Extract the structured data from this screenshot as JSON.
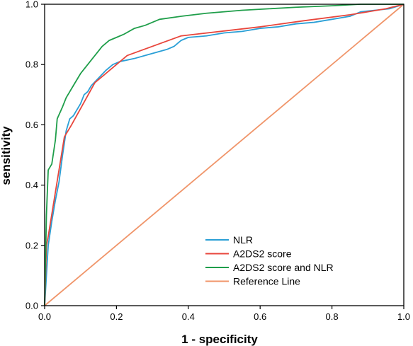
{
  "chart_data": {
    "type": "line",
    "title": "",
    "xlabel": "1 - specificity",
    "ylabel": "sensitivity",
    "xlim": [
      0,
      1
    ],
    "ylim": [
      0,
      1
    ],
    "x_ticks": [
      "0.0",
      "0.2",
      "0.4",
      "0.6",
      "0.8",
      "1.0"
    ],
    "y_ticks": [
      "0.0",
      "0.2",
      "0.4",
      "0.6",
      "0.8",
      "1.0"
    ],
    "grid": false,
    "legend_position": "bottom-right",
    "series": [
      {
        "name": "NLR",
        "color": "#2a9fd6",
        "points": [
          [
            0,
            0
          ],
          [
            0.005,
            0.1
          ],
          [
            0.01,
            0.2
          ],
          [
            0.02,
            0.28
          ],
          [
            0.03,
            0.35
          ],
          [
            0.04,
            0.41
          ],
          [
            0.05,
            0.5
          ],
          [
            0.06,
            0.58
          ],
          [
            0.07,
            0.62
          ],
          [
            0.08,
            0.63
          ],
          [
            0.09,
            0.65
          ],
          [
            0.1,
            0.67
          ],
          [
            0.11,
            0.7
          ],
          [
            0.12,
            0.71
          ],
          [
            0.13,
            0.73
          ],
          [
            0.15,
            0.755
          ],
          [
            0.17,
            0.78
          ],
          [
            0.19,
            0.8
          ],
          [
            0.21,
            0.81
          ],
          [
            0.23,
            0.815
          ],
          [
            0.25,
            0.82
          ],
          [
            0.28,
            0.83
          ],
          [
            0.31,
            0.84
          ],
          [
            0.34,
            0.85
          ],
          [
            0.36,
            0.86
          ],
          [
            0.38,
            0.88
          ],
          [
            0.4,
            0.89
          ],
          [
            0.45,
            0.895
          ],
          [
            0.5,
            0.905
          ],
          [
            0.55,
            0.91
          ],
          [
            0.6,
            0.92
          ],
          [
            0.65,
            0.925
          ],
          [
            0.7,
            0.935
          ],
          [
            0.75,
            0.94
          ],
          [
            0.8,
            0.95
          ],
          [
            0.85,
            0.96
          ],
          [
            0.88,
            0.975
          ],
          [
            0.92,
            0.98
          ],
          [
            0.96,
            0.985
          ],
          [
            1,
            1
          ]
        ]
      },
      {
        "name": "A2DS2 score",
        "color": "#e8463c",
        "points": [
          [
            0,
            0
          ],
          [
            0.005,
            0.2
          ],
          [
            0.01,
            0.23
          ],
          [
            0.055,
            0.56
          ],
          [
            0.075,
            0.6
          ],
          [
            0.14,
            0.74
          ],
          [
            0.23,
            0.83
          ],
          [
            0.38,
            0.895
          ],
          [
            0.6,
            0.925
          ],
          [
            0.72,
            0.945
          ],
          [
            0.85,
            0.965
          ],
          [
            0.95,
            0.985
          ],
          [
            1,
            1
          ]
        ]
      },
      {
        "name": "A2DS2 score and NLR",
        "color": "#1f9e4a",
        "points": [
          [
            0,
            0
          ],
          [
            0.005,
            0.3
          ],
          [
            0.01,
            0.45
          ],
          [
            0.02,
            0.47
          ],
          [
            0.03,
            0.55
          ],
          [
            0.035,
            0.62
          ],
          [
            0.05,
            0.66
          ],
          [
            0.06,
            0.69
          ],
          [
            0.07,
            0.71
          ],
          [
            0.08,
            0.73
          ],
          [
            0.1,
            0.77
          ],
          [
            0.12,
            0.8
          ],
          [
            0.14,
            0.83
          ],
          [
            0.16,
            0.86
          ],
          [
            0.18,
            0.88
          ],
          [
            0.2,
            0.89
          ],
          [
            0.22,
            0.9
          ],
          [
            0.25,
            0.92
          ],
          [
            0.28,
            0.93
          ],
          [
            0.32,
            0.95
          ],
          [
            0.38,
            0.96
          ],
          [
            0.45,
            0.97
          ],
          [
            0.55,
            0.98
          ],
          [
            0.7,
            0.99
          ],
          [
            0.8,
            0.995
          ],
          [
            0.88,
            1.0
          ],
          [
            0.92,
            1.0
          ],
          [
            1,
            1
          ]
        ]
      },
      {
        "name": "Reference Line",
        "color": "#f0956a",
        "points": [
          [
            0,
            0
          ],
          [
            1,
            1
          ]
        ]
      }
    ]
  }
}
